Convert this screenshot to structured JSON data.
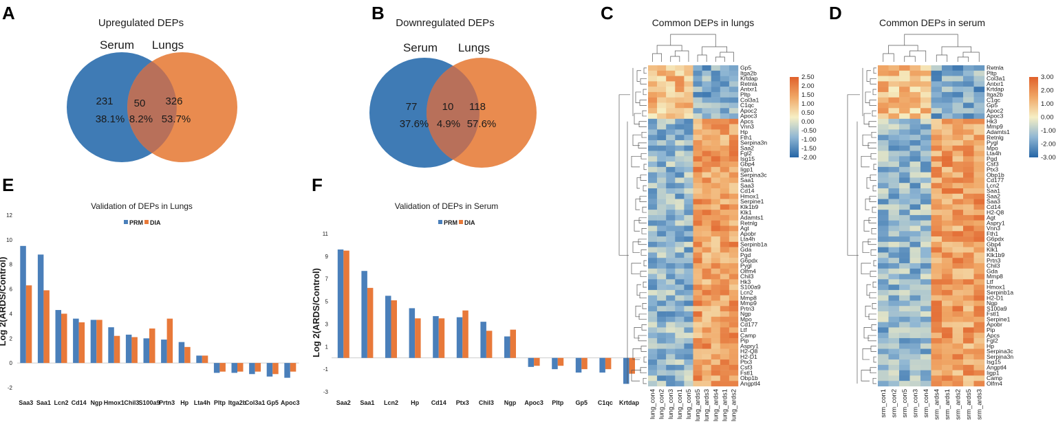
{
  "panels": {
    "A": {
      "label": "A",
      "title": "Upregulated DEPs",
      "left_set": "Serum",
      "right_set": "Lungs",
      "left_count": "231",
      "left_pct": "38.1%",
      "mid_count": "50",
      "mid_pct": "8.2%",
      "right_count": "326",
      "right_pct": "53.7%"
    },
    "B": {
      "label": "B",
      "title": "Downregulated DEPs",
      "left_set": "Serum",
      "right_set": "Lungs",
      "left_count": "77",
      "left_pct": "37.6%",
      "mid_count": "10",
      "mid_pct": "4.9%",
      "right_count": "118",
      "right_pct": "57.6%"
    },
    "C": {
      "label": "C",
      "title": "Common DEPs in lungs"
    },
    "D": {
      "label": "D",
      "title": "Common DEPs in serum"
    },
    "E": {
      "label": "E"
    },
    "F": {
      "label": "F"
    }
  },
  "colors": {
    "blue": "#4a7fba",
    "orange": "#e8793a",
    "venn_blue": "#3f7bb5",
    "venn_orange": "#e98b4f"
  },
  "chart_data": [
    {
      "type": "bar",
      "id": "E",
      "title": "Validation of DEPs in Lungs",
      "ylabel": "Log 2(ARDS/Control)",
      "ylim": [
        -2,
        12
      ],
      "yticks": [
        -2,
        0,
        2,
        4,
        6,
        8,
        10,
        12
      ],
      "legend": [
        "PRM",
        "DIA"
      ],
      "categories": [
        "Saa3",
        "Saa1",
        "Lcn2",
        "Cd14",
        "Ngp",
        "Hmox1",
        "Chil3",
        "S100a9",
        "Prtn3",
        "Hp",
        "Lta4h",
        "Pltp",
        "Itga2b",
        "Col3a1",
        "Gp5",
        "Apoc3"
      ],
      "series": [
        {
          "name": "PRM",
          "values": [
            9.5,
            8.8,
            4.3,
            3.6,
            3.5,
            2.9,
            2.3,
            2.0,
            1.9,
            1.7,
            0.6,
            -0.8,
            -0.8,
            -0.9,
            -1.1,
            -1.2
          ]
        },
        {
          "name": "DIA",
          "values": [
            6.3,
            5.9,
            4.0,
            3.3,
            3.5,
            2.2,
            2.1,
            2.8,
            3.6,
            1.3,
            0.6,
            -0.7,
            -0.7,
            -0.7,
            -0.9,
            -0.7
          ]
        }
      ]
    },
    {
      "type": "bar",
      "id": "F",
      "title": "Validation of DEPs in Serum",
      "ylabel": "Log 2(ARDS/Control)",
      "ylim": [
        -3,
        11
      ],
      "yticks": [
        -3,
        -1,
        1,
        3,
        5,
        7,
        9,
        11
      ],
      "legend": [
        "PRM",
        "DIA"
      ],
      "categories": [
        "Saa2",
        "Saa1",
        "Lcn2",
        "Hp",
        "Cd14",
        "Ptx3",
        "Chil3",
        "Ngp",
        "Apoc3",
        "Pltp",
        "Gp5",
        "C1qc",
        "Krtdap"
      ],
      "series": [
        {
          "name": "PRM",
          "values": [
            9.6,
            7.7,
            5.5,
            4.4,
            3.7,
            3.6,
            3.2,
            1.9,
            -0.8,
            -1.0,
            -1.3,
            -1.3,
            -2.3
          ]
        },
        {
          "name": "DIA",
          "values": [
            9.5,
            6.2,
            5.1,
            3.5,
            3.5,
            4.2,
            2.4,
            2.5,
            -0.7,
            -0.7,
            -1.0,
            -1.0,
            -1.4
          ]
        }
      ]
    },
    {
      "type": "heatmap",
      "id": "C",
      "title": "Common DEPs in lungs",
      "columns": [
        "lung_con4",
        "lung_con2",
        "lung_con3",
        "lung_con1",
        "lung_con5",
        "lung_ards5",
        "lung_ards3",
        "lung_ards4",
        "lung_ards1",
        "lung_ards2"
      ],
      "rows": [
        "Gp5",
        "Itga2b",
        "Krtdap",
        "Retnla",
        "Antxr1",
        "Pltp",
        "Col3a1",
        "C1qc",
        "Apoc2",
        "Apoc3",
        "Apcs",
        "Vnn3",
        "Hp",
        "Fth1",
        "Serpina3n",
        "Saa2",
        "Fgl2",
        "Isg15",
        "Gbp4",
        "Iigp1",
        "Serpina3c",
        "Saa1",
        "Saa3",
        "Cd14",
        "Hmox1",
        "Serpine1",
        "Klk1b9",
        "Klk1",
        "Adamts1",
        "Retnlg",
        "Agt",
        "Apobr",
        "Lta4h",
        "Serpinb1a",
        "Gda",
        "Pgd",
        "G6pdx",
        "Pygl",
        "Olfm4",
        "Chil3",
        "Hk3",
        "S100a9",
        "Lcn2",
        "Mmp8",
        "Mmp9",
        "Prtn3",
        "Ngp",
        "Mpo",
        "Cd177",
        "Ltf",
        "Camp",
        "Pip",
        "Aspry1",
        "H2-Q8",
        "H2-D1",
        "Ptx3",
        "Csf3",
        "Fstl1",
        "Obp1b",
        "Angptl4"
      ],
      "n_upper_block": 10,
      "colorbar": {
        "ticks": [
          "2.50",
          "2.00",
          "1.50",
          "1.00",
          "0.50",
          "0.00",
          "-0.50",
          "-1.00",
          "-1.50",
          "-2.00"
        ],
        "range": [
          -2.0,
          2.5
        ]
      }
    },
    {
      "type": "heatmap",
      "id": "D",
      "title": "Common DEPs in serum",
      "columns": [
        "srm_con1",
        "srm_con2",
        "srm_con5",
        "srm_con3",
        "srm_con4",
        "srm_ards4",
        "srm_ards1",
        "srm_ards2",
        "srm_ards5",
        "srm_ards3"
      ],
      "rows": [
        "Retnla",
        "Pltp",
        "Col3a1",
        "Antxr1",
        "Krtdap",
        "Itga2b",
        "C1qc",
        "Gp5",
        "Apoc2",
        "Apoc3",
        "Hk3",
        "Mmp9",
        "Adamts1",
        "Retnlg",
        "Pygl",
        "Mpo",
        "Lta4h",
        "Pgd",
        "Csf3",
        "Ptx3",
        "Obp1b",
        "Cd177",
        "Lcn2",
        "Saa1",
        "Saa2",
        "Saa3",
        "Cd14",
        "H2-Q8",
        "Agt",
        "Aspry1",
        "Vnn3",
        "Fth1",
        "G6pdx",
        "Gbp4",
        "Klk1",
        "Klk1b9",
        "Prtn3",
        "Chil3",
        "Gda",
        "Mmp8",
        "Ltf",
        "Hmox1",
        "Serpinb1a",
        "H2-D1",
        "Ngp",
        "S100a9",
        "Fstl1",
        "Serpine1",
        "Apobr",
        "Pip",
        "Apcs",
        "Fgl2",
        "Hp",
        "Serpina3c",
        "Serpina3n",
        "Isg15",
        "Angptl4",
        "Iigp1",
        "Camp",
        "Olfm4"
      ],
      "n_upper_block": 10,
      "colorbar": {
        "ticks": [
          "3.00",
          "2.00",
          "1.00",
          "0.00",
          "-1.00",
          "-2.00",
          "-3.00"
        ],
        "range": [
          -3.0,
          3.0
        ]
      }
    }
  ]
}
